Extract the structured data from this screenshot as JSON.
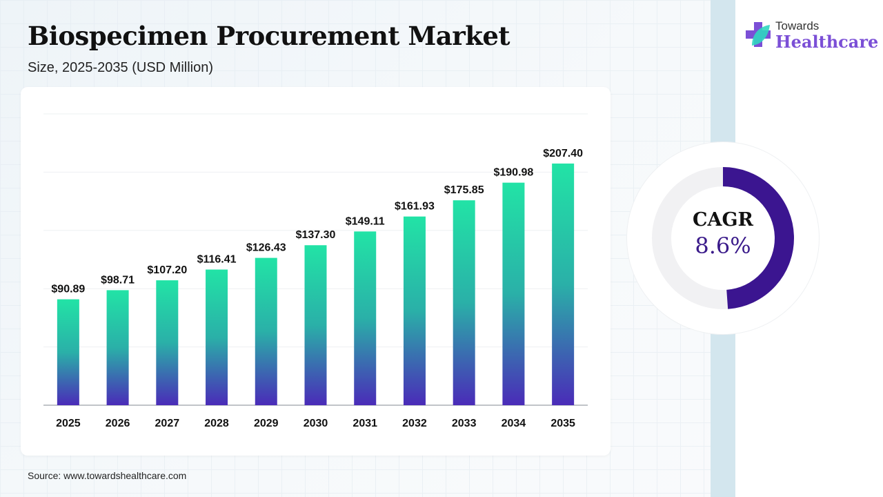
{
  "header": {
    "title": "Biospecimen Procurement Market",
    "subtitle": "Size, 2025-2035 (USD Million)"
  },
  "logo": {
    "line1": "Towards",
    "line2": "Healthcare"
  },
  "source": "Source: www.towardshealthcare.com",
  "cagr": {
    "label": "CAGR",
    "value": "8.6%",
    "color": "#3b1590",
    "track_color": "#f1f1f3"
  },
  "chart_data": {
    "type": "bar",
    "title": "Biospecimen Procurement Market",
    "subtitle": "Size, 2025-2035 (USD Million)",
    "categories": [
      "2025",
      "2026",
      "2027",
      "2028",
      "2029",
      "2030",
      "2031",
      "2032",
      "2033",
      "2034",
      "2035"
    ],
    "values": [
      90.89,
      98.71,
      107.2,
      116.41,
      126.43,
      137.3,
      149.11,
      161.93,
      175.85,
      190.98,
      207.4
    ],
    "data_labels": [
      "$90.89",
      "$98.71",
      "$107.20",
      "$116.41",
      "$126.43",
      "$137.30",
      "$149.11",
      "$161.93",
      "$175.85",
      "$190.98",
      "$207.40"
    ],
    "xlabel": "",
    "ylabel": "",
    "ylim": [
      0,
      250
    ],
    "grid": true,
    "bar_gradient": {
      "top": "#22e3a6",
      "bottom": "#4a2bb8"
    }
  }
}
